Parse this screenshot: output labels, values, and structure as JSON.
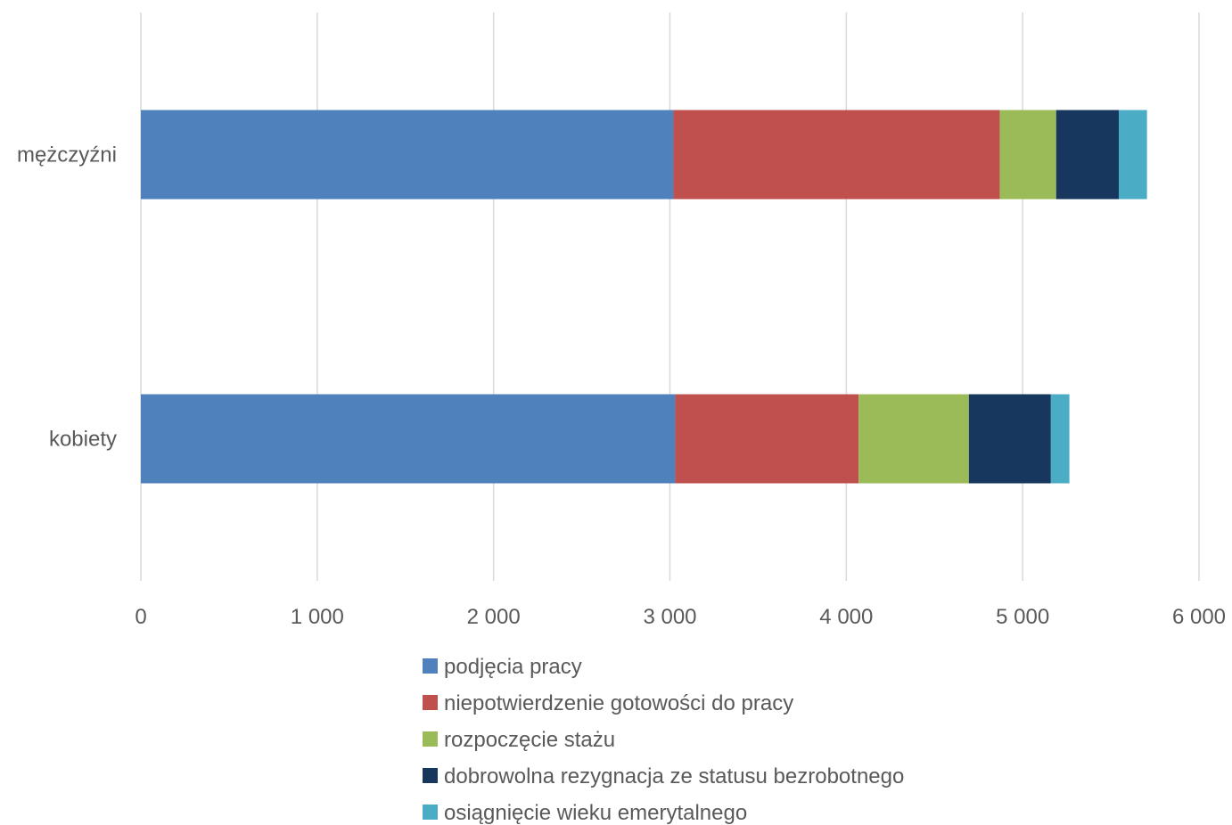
{
  "chart_data": {
    "type": "bar",
    "orientation": "horizontal",
    "stacked": true,
    "categories": [
      "mężczyźni",
      "kobiety"
    ],
    "series": [
      {
        "name": "podjęcia pracy",
        "color": "#4F81BD",
        "values": [
          3020,
          3030
        ]
      },
      {
        "name": "niepotwierdzenie gotowości do pracy",
        "color": "#C0504D",
        "values": [
          1850,
          1040
        ]
      },
      {
        "name": "rozpoczęcie stażu",
        "color": "#9BBB59",
        "values": [
          320,
          625
        ]
      },
      {
        "name": "dobrowolna rezygnacja ze statusu bezrobotnego",
        "color": "#17375E",
        "values": [
          355,
          465
        ]
      },
      {
        "name": "osiągnięcie wieku emerytalnego",
        "color": "#4BACC6",
        "values": [
          160,
          105
        ]
      }
    ],
    "xlim": [
      0,
      6000
    ],
    "xticks": [
      0,
      1000,
      2000,
      3000,
      4000,
      5000,
      6000
    ],
    "xtick_labels": [
      "0",
      "1 000",
      "2 000",
      "3 000",
      "4 000",
      "5 000",
      "6 000"
    ],
    "grid": "vertical",
    "legend_position": "bottom",
    "title": "",
    "xlabel": "",
    "ylabel": ""
  }
}
